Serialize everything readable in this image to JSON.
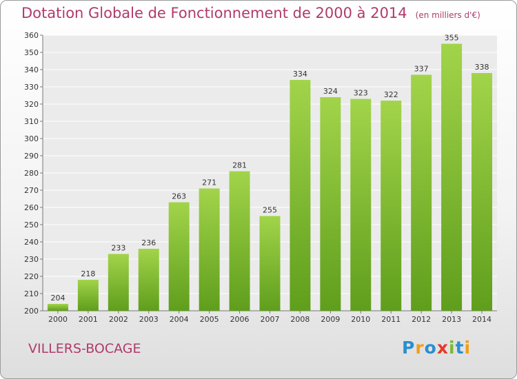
{
  "chart_data": {
    "type": "bar",
    "title": "Dotation Globale de Fonctionnement de 2000 à 2014",
    "subtitle": "(en milliers d'€)",
    "xlabel": "",
    "ylabel": "",
    "categories": [
      "2000",
      "2001",
      "2002",
      "2003",
      "2004",
      "2005",
      "2006",
      "2007",
      "2008",
      "2009",
      "2010",
      "2011",
      "2012",
      "2013",
      "2014"
    ],
    "values": [
      204,
      218,
      233,
      236,
      263,
      271,
      281,
      255,
      334,
      324,
      323,
      322,
      337,
      355,
      338
    ],
    "ylim": [
      200,
      360
    ],
    "yticks": [
      200,
      210,
      220,
      230,
      240,
      250,
      260,
      270,
      280,
      290,
      300,
      310,
      320,
      330,
      340,
      350,
      360
    ],
    "grid": true,
    "bar_color": "#7cb82f"
  },
  "footer": {
    "commune": "VILLERS-BOCAGE",
    "logo_letters": [
      {
        "ch": "P",
        "color": "#2a8fd0"
      },
      {
        "ch": "r",
        "color": "#f29d1a"
      },
      {
        "ch": "o",
        "color": "#2a8fd0"
      },
      {
        "ch": "x",
        "color": "#e53a2a"
      },
      {
        "ch": "i",
        "color": "#7cb82f"
      },
      {
        "ch": "t",
        "color": "#2a8fd0"
      },
      {
        "ch": "i",
        "color": "#f29d1a"
      }
    ]
  }
}
